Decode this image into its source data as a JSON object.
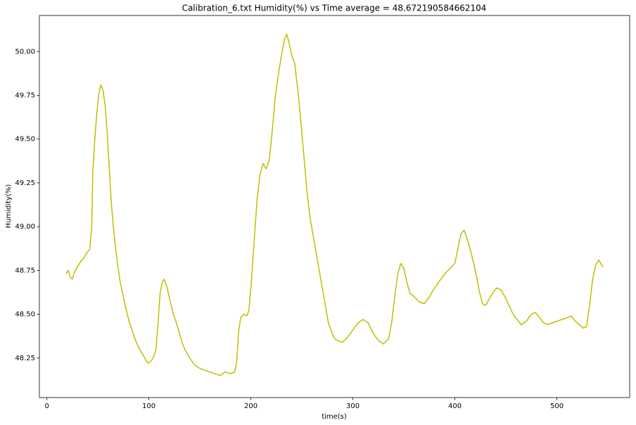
{
  "chart_data": {
    "type": "line",
    "title": "Calibration_6.txt  Humidity(%) vs Time  average = 48.672190584662104",
    "x_label": "time(s)",
    "y_label": "Humidity(%)",
    "x": [
      19,
      21,
      23,
      25,
      27,
      30,
      33,
      36,
      39,
      42,
      44,
      45,
      47,
      49,
      51,
      53,
      55,
      57,
      59,
      61,
      63,
      66,
      69,
      72,
      75,
      78,
      81,
      84,
      87,
      90,
      93,
      96,
      99,
      102,
      105,
      107,
      109,
      111,
      113,
      115,
      118,
      121,
      124,
      127,
      130,
      133,
      136,
      140,
      145,
      150,
      155,
      160,
      165,
      170,
      175,
      180,
      184,
      186,
      188,
      190,
      193,
      196,
      198,
      200,
      203,
      206,
      209,
      212,
      215,
      218,
      221,
      224,
      227,
      230,
      233,
      235,
      237,
      240,
      243,
      246,
      249,
      252,
      255,
      258,
      261,
      264,
      267,
      270,
      273,
      276,
      279,
      282,
      285,
      290,
      295,
      300,
      305,
      310,
      315,
      320,
      325,
      330,
      335,
      338,
      341,
      344,
      347,
      350,
      353,
      356,
      360,
      365,
      370,
      375,
      380,
      385,
      390,
      395,
      400,
      403,
      406,
      409,
      412,
      415,
      418,
      421,
      424,
      427,
      430,
      433,
      437,
      441,
      445,
      449,
      453,
      457,
      461,
      465,
      470,
      475,
      479,
      483,
      487,
      491,
      495,
      500,
      505,
      510,
      514,
      518,
      522,
      526,
      529,
      532,
      535,
      538,
      541,
      543,
      545
    ],
    "series": [
      {
        "name": "Humidity(%)",
        "color": "#bfbf00",
        "values": [
          48.73,
          48.75,
          48.71,
          48.7,
          48.74,
          48.77,
          48.8,
          48.82,
          48.85,
          48.87,
          49.0,
          49.3,
          49.5,
          49.65,
          49.76,
          49.81,
          49.78,
          49.7,
          49.55,
          49.35,
          49.15,
          48.95,
          48.8,
          48.68,
          48.6,
          48.52,
          48.45,
          48.4,
          48.35,
          48.31,
          48.28,
          48.25,
          48.22,
          48.23,
          48.26,
          48.3,
          48.45,
          48.62,
          48.68,
          48.7,
          48.65,
          48.57,
          48.5,
          48.45,
          48.39,
          48.33,
          48.29,
          48.25,
          48.21,
          48.19,
          48.18,
          48.17,
          48.16,
          48.15,
          48.17,
          48.16,
          48.17,
          48.22,
          48.4,
          48.48,
          48.5,
          48.49,
          48.52,
          48.65,
          48.9,
          49.15,
          49.3,
          49.36,
          49.33,
          49.38,
          49.55,
          49.75,
          49.87,
          49.98,
          50.07,
          50.1,
          50.06,
          49.98,
          49.93,
          49.78,
          49.6,
          49.4,
          49.2,
          49.05,
          48.95,
          48.85,
          48.75,
          48.65,
          48.55,
          48.45,
          48.4,
          48.36,
          48.35,
          48.34,
          48.37,
          48.41,
          48.45,
          48.47,
          48.45,
          48.39,
          48.35,
          48.33,
          48.36,
          48.45,
          48.6,
          48.73,
          48.79,
          48.76,
          48.68,
          48.62,
          48.6,
          48.57,
          48.56,
          48.6,
          48.65,
          48.69,
          48.73,
          48.76,
          48.79,
          48.88,
          48.96,
          48.98,
          48.93,
          48.87,
          48.8,
          48.72,
          48.63,
          48.56,
          48.55,
          48.58,
          48.62,
          48.65,
          48.64,
          48.6,
          48.55,
          48.5,
          48.47,
          48.44,
          48.46,
          48.5,
          48.51,
          48.48,
          48.45,
          48.44,
          48.45,
          48.46,
          48.47,
          48.48,
          48.49,
          48.46,
          48.44,
          48.42,
          48.43,
          48.55,
          48.7,
          48.78,
          48.81,
          48.79,
          48.77
        ]
      }
    ],
    "xlim": [
      -7.3,
      571.3
    ],
    "ylim": [
      48.024,
      50.206
    ],
    "xticks": [
      0,
      100,
      200,
      300,
      400,
      500
    ],
    "yticks": [
      {
        "value": 48.25,
        "label": "48.25"
      },
      {
        "value": 48.5,
        "label": "48.50"
      },
      {
        "value": 48.75,
        "label": "48.75"
      },
      {
        "value": 49,
        "label": "49.00"
      },
      {
        "value": 49.25,
        "label": "49.25"
      },
      {
        "value": 49.5,
        "label": "49.50"
      },
      {
        "value": 49.75,
        "label": "49.75"
      },
      {
        "value": 50,
        "label": "50.00"
      }
    ],
    "grid": false
  }
}
